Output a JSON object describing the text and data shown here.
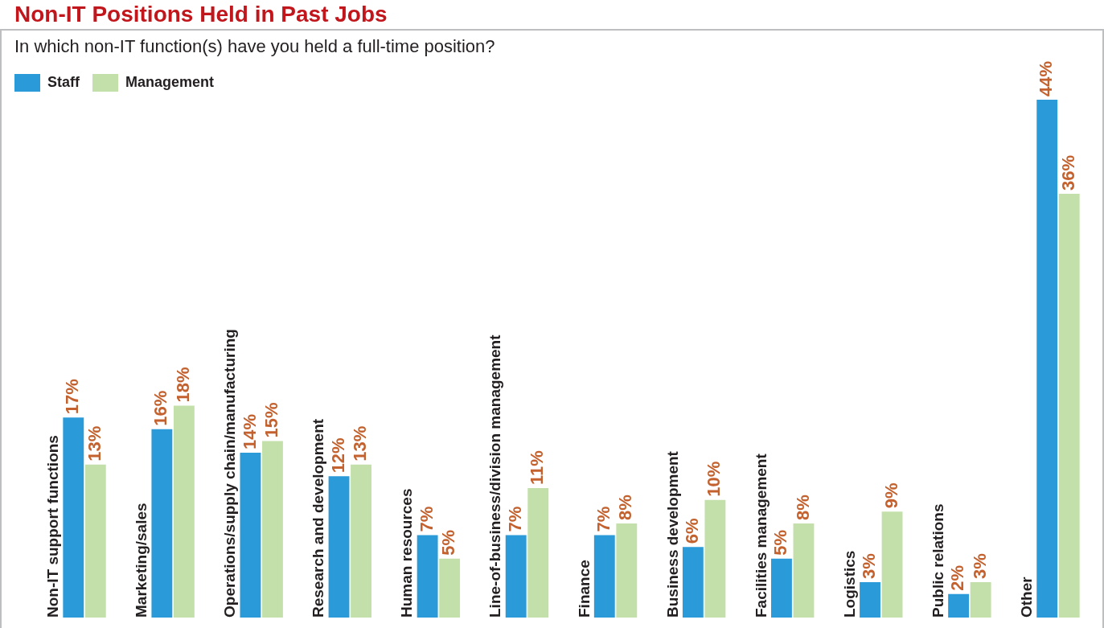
{
  "chart_data": {
    "type": "bar",
    "title": "Non-IT Positions Held in Past Jobs",
    "subtitle": "In which non-IT function(s) have you held a full-time position?",
    "categories": [
      "Non-IT support functions",
      "Marketing/sales",
      "Operations/supply chain/manufacturing",
      "Research and development",
      "Human resources",
      "Line-of-business/division management",
      "Finance",
      "Business development",
      "Facilities management",
      "Logistics",
      "Public relations",
      "Other"
    ],
    "series": [
      {
        "name": "Staff",
        "color": "#2a9ad9",
        "values": [
          17,
          16,
          14,
          12,
          7,
          7,
          7,
          6,
          5,
          3,
          2,
          44
        ],
        "value_labels": [
          "17%",
          "16%",
          "14%",
          "12%",
          "7%",
          "7%",
          "7%",
          "6%",
          "5%",
          "3%",
          "2%",
          "44%"
        ]
      },
      {
        "name": "Management",
        "color": "#c4e0aa",
        "values": [
          13,
          18,
          15,
          13,
          5,
          11,
          8,
          10,
          8,
          9,
          3,
          36
        ],
        "value_labels": [
          "13%",
          "18%",
          "15%",
          "13%",
          "5%",
          "11%",
          "8%",
          "10%",
          "8%",
          "9%",
          "3%",
          "36%"
        ]
      }
    ],
    "legend": "top left"
  }
}
